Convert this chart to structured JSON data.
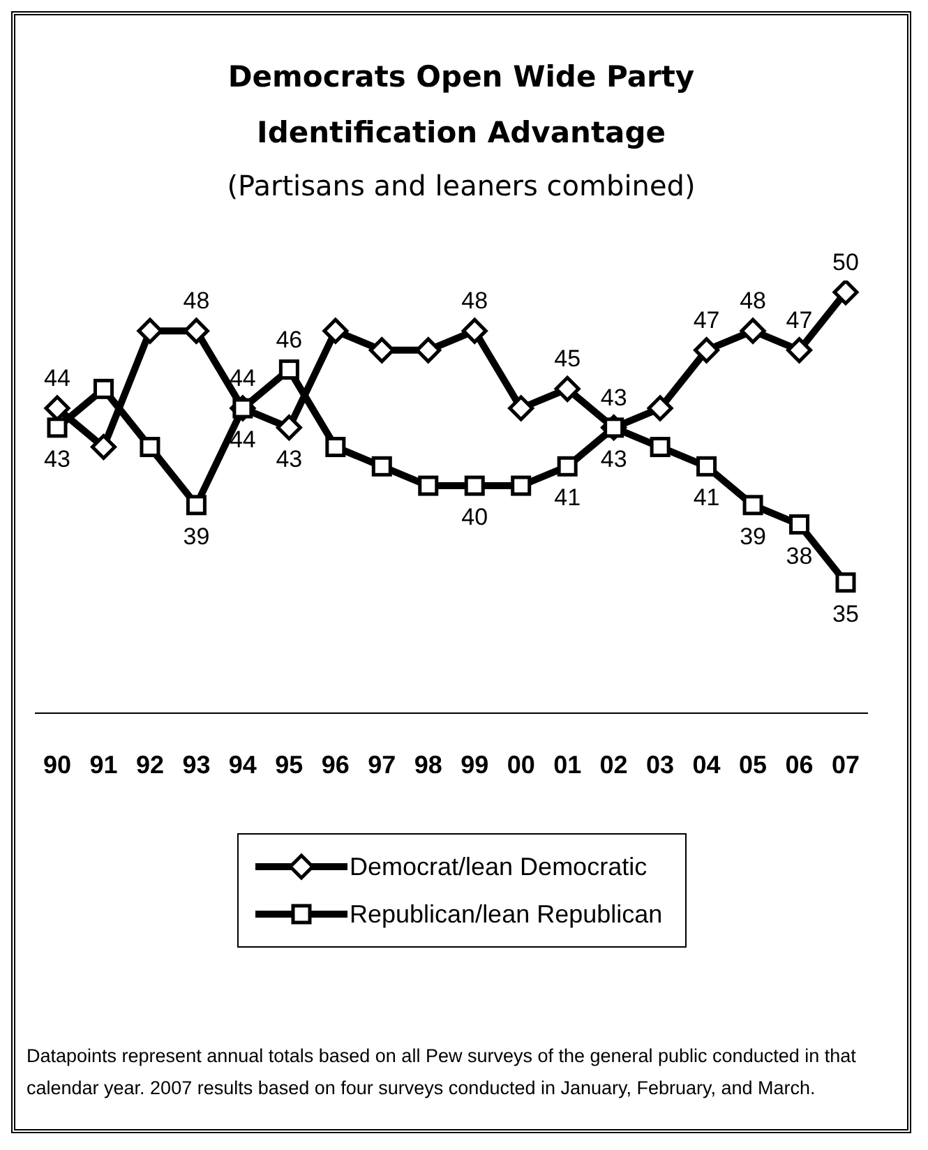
{
  "chart_data": {
    "type": "line",
    "title": "Democrats Open Wide Party Identification Advantage",
    "subtitle": "(Partisans and leaners combined)",
    "categories": [
      "90",
      "91",
      "92",
      "93",
      "94",
      "95",
      "96",
      "97",
      "98",
      "99",
      "00",
      "01",
      "02",
      "03",
      "04",
      "05",
      "06",
      "07"
    ],
    "series": [
      {
        "name": "Democrat/lean Democratic",
        "color": "#000000",
        "marker": "diamond",
        "values": [
          44,
          42,
          48,
          48,
          44,
          43,
          48,
          47,
          47,
          48,
          44,
          45,
          43,
          44,
          47,
          48,
          47,
          50
        ],
        "value_labels": [
          "44",
          null,
          null,
          "48",
          "44",
          "43",
          null,
          null,
          null,
          "48",
          null,
          "45",
          "43",
          null,
          "47",
          "48",
          "47",
          "50"
        ]
      },
      {
        "name": "Republican/lean Republican",
        "color": "#000000",
        "marker": "square",
        "values": [
          43,
          45,
          42,
          39,
          44,
          46,
          42,
          41,
          40,
          40,
          40,
          41,
          43,
          42,
          41,
          39,
          38,
          35
        ],
        "value_labels": [
          "43",
          null,
          null,
          "39",
          "44",
          "46",
          null,
          null,
          null,
          "40",
          null,
          "41",
          "43",
          null,
          "41",
          "39",
          "38",
          "35"
        ]
      }
    ],
    "legend": "bottom",
    "line_style": "solid",
    "annotations": [
      "Datapoints represent annual totals based on all Pew surveys of the general public conducted in that calendar year.  2007 results based on four surveys conducted in January, February, and March."
    ]
  }
}
